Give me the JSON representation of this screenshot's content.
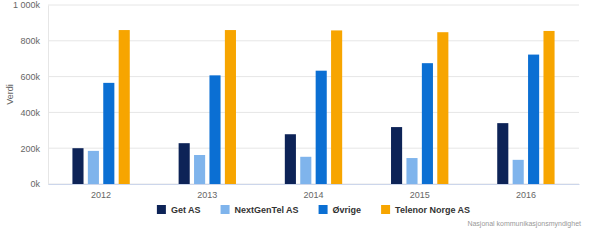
{
  "chart_data": {
    "type": "bar",
    "y_label": "Verdi",
    "source": "Nasjonal kommunikasjonsmyndighet",
    "categories": [
      "2012",
      "2013",
      "2014",
      "2015",
      "2016"
    ],
    "series": [
      {
        "name": "Get AS",
        "color": "#0d2357",
        "values": [
          200000,
          228000,
          278000,
          318000,
          340000
        ]
      },
      {
        "name": "NextGenTel AS",
        "color": "#7fb4ec",
        "values": [
          185000,
          162000,
          152000,
          145000,
          135000
        ]
      },
      {
        "name": "Øvrige",
        "color": "#0b6fd3",
        "values": [
          565000,
          607000,
          633000,
          675000,
          723000
        ]
      },
      {
        "name": "Telenor Norge AS",
        "color": "#f7a500",
        "values": [
          860000,
          860000,
          858000,
          848000,
          855000
        ]
      }
    ],
    "ylim": [
      0,
      1000000
    ],
    "yticks": [
      {
        "value": 0,
        "label": "0k"
      },
      {
        "value": 200000,
        "label": "200k"
      },
      {
        "value": 400000,
        "label": "400k"
      },
      {
        "value": 600000,
        "label": "600k"
      },
      {
        "value": 800000,
        "label": "800k"
      },
      {
        "value": 1000000,
        "label": "1 000k"
      }
    ],
    "grid": true,
    "legend": "bottom"
  }
}
